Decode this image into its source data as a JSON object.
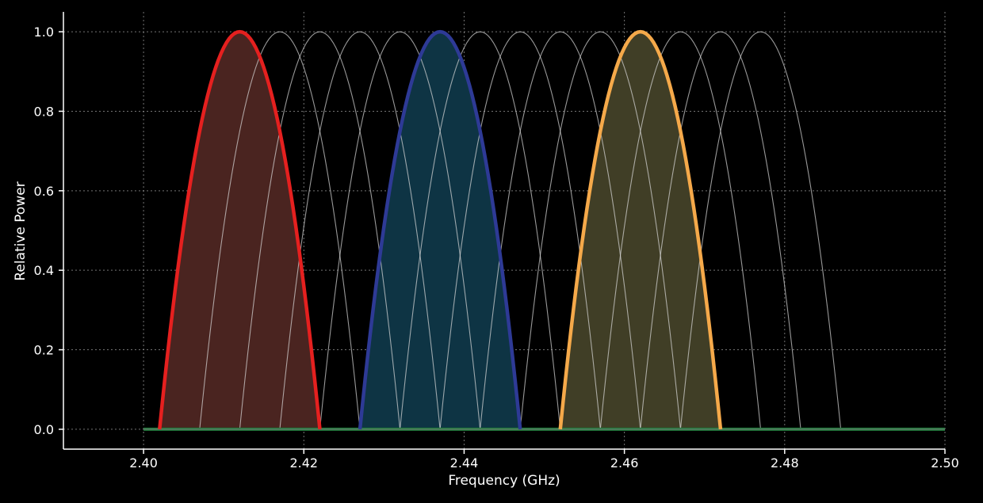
{
  "chart_data": {
    "type": "line",
    "title": "",
    "xlabel": "Frequency (GHz)",
    "ylabel": "Relative Power",
    "xlim": [
      2.39,
      2.5
    ],
    "ylim": [
      -0.05,
      1.05
    ],
    "x_ticks": [
      "2.40",
      "2.42",
      "2.44",
      "2.46",
      "2.48",
      "2.50"
    ],
    "y_ticks": [
      "0.0",
      "0.2",
      "0.4",
      "0.6",
      "0.8",
      "1.0"
    ],
    "grid": true,
    "curve_shape": "parabolic",
    "channel_width_ghz": 0.02,
    "channel_centers_ghz": [
      2.412,
      2.417,
      2.422,
      2.427,
      2.432,
      2.437,
      2.442,
      2.447,
      2.452,
      2.457,
      2.462,
      2.467,
      2.472,
      2.477
    ],
    "baseline": {
      "x": [
        2.4,
        2.5
      ],
      "y": [
        0.0,
        0.0
      ],
      "color": "#1e7a3a"
    },
    "highlighted": [
      {
        "center": 2.412,
        "color": "#e5201f",
        "fill": "#4a2420"
      },
      {
        "center": 2.437,
        "color": "#2e3a96",
        "fill": "#0e3444"
      },
      {
        "center": 2.462,
        "color": "#f5a94a",
        "fill": "#403e26"
      }
    ],
    "background_curve_color": "#d8d8d8"
  }
}
